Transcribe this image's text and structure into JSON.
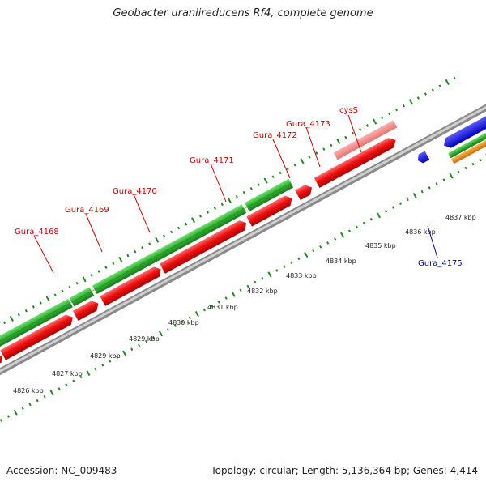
{
  "title": "Geobacter uraniireducens Rf4, complete genome",
  "footer": {
    "accession": "Accession: NC_009483",
    "summary": "Topology: circular; Length: 5,136,364 bp; Genes: 4,414"
  },
  "colors": {
    "forward_cds": "#ee1111",
    "forward_pseudo": "#f08a8a",
    "reverse_cds": "#1515ee",
    "orf_green": "#33bb33",
    "orf_orange": "#ee8811",
    "backbone": "#888888",
    "ticks": "#228822",
    "forward_label": "#cc0000",
    "reverse_label": "#000099"
  },
  "tick_labels": [
    "4826 kbp",
    "4827 kbp",
    "4829 kbp",
    "4830 kbp",
    "4831 kbp",
    "4832 kbp",
    "4833 kbp",
    "4834 kbp",
    "4835 kbp",
    "4836 kbp",
    "4837 kbp"
  ],
  "gene_labels": [
    {
      "name": "Gura_4168",
      "strand": "forward"
    },
    {
      "name": "Gura_4169",
      "strand": "forward"
    },
    {
      "name": "Gura_4170",
      "strand": "forward"
    },
    {
      "name": "Gura_4171",
      "strand": "forward"
    },
    {
      "name": "Gura_4172",
      "strand": "forward"
    },
    {
      "name": "Gura_4173",
      "strand": "forward"
    },
    {
      "name": "cysS",
      "strand": "forward"
    },
    {
      "name": "Gura_4175",
      "strand": "reverse"
    }
  ]
}
